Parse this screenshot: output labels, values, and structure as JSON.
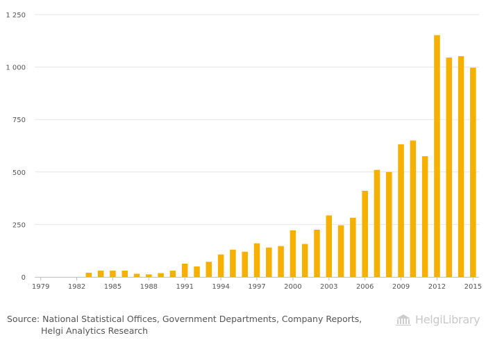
{
  "chart_data": {
    "type": "bar",
    "title": "",
    "xlabel": "",
    "ylabel": "",
    "ylim": [
      0,
      1250
    ],
    "y_ticks": [
      0,
      250,
      500,
      750,
      1000,
      1250
    ],
    "y_tick_labels": [
      "0",
      "250",
      "500",
      "750",
      "1 000",
      "1 250"
    ],
    "x_tick_labels": [
      "1979",
      "1982",
      "1985",
      "1988",
      "1991",
      "1994",
      "1997",
      "2000",
      "2003",
      "2006",
      "2009",
      "2012",
      "2015"
    ],
    "categories": [
      "1979",
      "1980",
      "1981",
      "1982",
      "1983",
      "1984",
      "1985",
      "1986",
      "1987",
      "1988",
      "1989",
      "1990",
      "1991",
      "1992",
      "1993",
      "1994",
      "1995",
      "1996",
      "1997",
      "1998",
      "1999",
      "2000",
      "2001",
      "2002",
      "2003",
      "2004",
      "2005",
      "2006",
      "2007",
      "2008",
      "2009",
      "2010",
      "2011",
      "2012",
      "2013",
      "2014",
      "2015"
    ],
    "values": [
      0,
      0,
      0,
      0,
      20,
      30,
      30,
      30,
      15,
      12,
      18,
      30,
      63,
      50,
      72,
      107,
      130,
      120,
      160,
      140,
      147,
      222,
      157,
      225,
      293,
      246,
      282,
      410,
      510,
      500,
      632,
      650,
      575,
      1152,
      1045,
      1052,
      997
    ],
    "color": "#f5b000",
    "grid": true
  },
  "source": {
    "line1": "Source: National Statistical Offices, Government Departments, Company Reports,",
    "line2": "Helgi Analytics Research"
  },
  "brand": {
    "name": "HelgiLibrary"
  }
}
